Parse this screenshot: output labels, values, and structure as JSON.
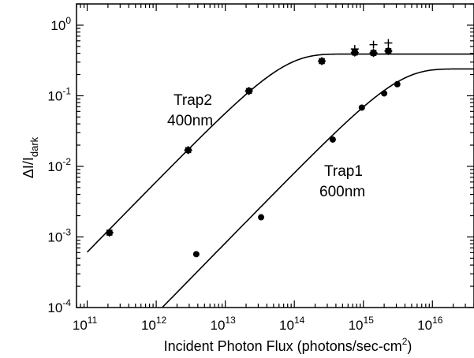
{
  "chart_data": {
    "type": "scatter",
    "xscale": "log",
    "yscale": "log",
    "xlabel": "Incident Photon Flux (photons/sec-cm",
    "xlabel_sup": "2",
    "xlabel_end": ")",
    "ylabel_main": "ΔI/I",
    "ylabel_sub": "dark",
    "xlim": [
      70000000000.0,
      4e+16
    ],
    "ylim": [
      0.0001,
      2.0
    ],
    "x_ticks": [
      {
        "exp": "11"
      },
      {
        "exp": "12"
      },
      {
        "exp": "13"
      },
      {
        "exp": "14"
      },
      {
        "exp": "15"
      },
      {
        "exp": "16"
      }
    ],
    "x_tick_base": "10",
    "y_ticks": [
      {
        "mant": "10",
        "exp": "-4"
      },
      {
        "mant": "10",
        "exp": "-3"
      },
      {
        "mant": "10",
        "exp": "-2"
      },
      {
        "mant": "10",
        "exp": "-1"
      },
      {
        "mant": "10",
        "exp": "0"
      }
    ],
    "annotations": [
      {
        "line1": "Trap2",
        "line2": "400nm"
      },
      {
        "line1": "Trap1",
        "line2": "600nm"
      }
    ],
    "series": [
      {
        "marker": "star",
        "points": [
          [
            210000000000.0,
            0.00115
          ],
          [
            2900000000000.0,
            0.017
          ],
          [
            22000000000000.0,
            0.117
          ],
          [
            250000000000000.0,
            0.31
          ],
          [
            750000000000000.0,
            0.41
          ],
          [
            1400000000000000.0,
            0.405
          ],
          [
            2300000000000000.0,
            0.43
          ]
        ]
      },
      {
        "marker": "plus",
        "points": [
          [
            750000000000000.0,
            0.46
          ],
          [
            1400000000000000.0,
            0.53
          ],
          [
            2300000000000000.0,
            0.56
          ]
        ]
      },
      {
        "marker": "circle",
        "points": [
          [
            3800000000000.0,
            0.00057
          ],
          [
            33000000000000.0,
            0.0019
          ],
          [
            360000000000000.0,
            0.024
          ],
          [
            950000000000000.0,
            0.068
          ],
          [
            2000000000000000.0,
            0.108
          ],
          [
            3100000000000000.0,
            0.146
          ]
        ]
      }
    ],
    "fits": [
      {
        "a": 6.1e-15,
        "ysat": 0.39,
        "xrange": [
          100000000000.0,
          4e+16
        ]
      },
      {
        "a": 8.2e-17,
        "ysat": 0.24,
        "xrange": [
          1000000000000.0,
          4e+16
        ]
      }
    ]
  }
}
